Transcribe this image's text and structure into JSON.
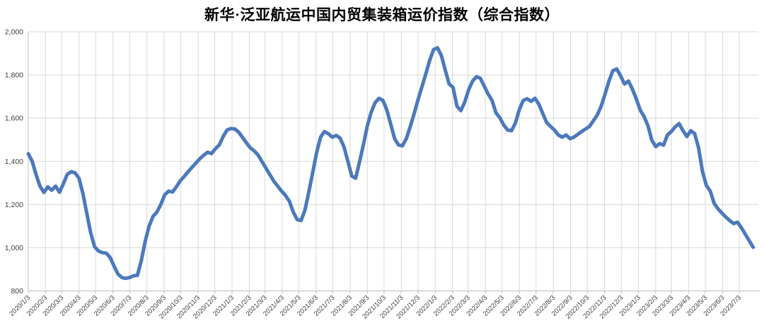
{
  "chart_data": {
    "type": "line",
    "title": "新华·泛亚航运中国内贸集装箱运价指数（综合指数）",
    "legend": "none",
    "grid": "both",
    "ylim": [
      800,
      2000
    ],
    "y_tick_values": [
      800,
      1000,
      1200,
      1400,
      1600,
      1800,
      2000
    ],
    "y_tick_labels": [
      "800",
      "1,000",
      "1,200",
      "1,400",
      "1,600",
      "1,800",
      "2,000"
    ],
    "x_tick_labels": [
      "2020/1/3",
      "2020/2/3",
      "2020/3/3",
      "2020/4/3",
      "2020/5/3",
      "2020/6/3",
      "2020/7/3",
      "2020/8/3",
      "2020/9/3",
      "2020/10/3",
      "2020/11/3",
      "2020/12/3",
      "2021/1/3",
      "2021/2/3",
      "2021/3/3",
      "2021/4/3",
      "2021/5/3",
      "2021/6/3",
      "2021/7/3",
      "2021/8/3",
      "2021/9/3",
      "2021/10/3",
      "2021/11/3",
      "2021/12/3",
      "2022/1/3",
      "2022/2/3",
      "2022/3/3",
      "2022/4/3",
      "2022/5/3",
      "2022/6/3",
      "2022/7/3",
      "2022/8/3",
      "2022/9/3",
      "2022/10/3",
      "2022/11/3",
      "2022/12/3",
      "2023/1/3",
      "2023/2/3",
      "2023/3/3",
      "2023/4/3",
      "2023/5/3",
      "2023/6/3",
      "2023/7/3"
    ],
    "series": [
      {
        "name": "综合指数",
        "x": [
          "2020/1/3",
          "2020/1/10",
          "2020/1/17",
          "2020/1/24",
          "2020/1/31",
          "2020/2/7",
          "2020/2/14",
          "2020/2/21",
          "2020/2/28",
          "2020/3/6",
          "2020/3/13",
          "2020/3/20",
          "2020/3/27",
          "2020/4/3",
          "2020/4/10",
          "2020/4/17",
          "2020/4/24",
          "2020/5/1",
          "2020/5/8",
          "2020/5/15",
          "2020/5/22",
          "2020/5/29",
          "2020/6/5",
          "2020/6/12",
          "2020/6/19",
          "2020/6/26",
          "2020/7/3",
          "2020/7/10",
          "2020/7/17",
          "2020/7/24",
          "2020/7/31",
          "2020/8/7",
          "2020/8/14",
          "2020/8/21",
          "2020/8/28",
          "2020/9/4",
          "2020/9/11",
          "2020/9/18",
          "2020/9/25",
          "2020/10/2",
          "2020/10/9",
          "2020/10/16",
          "2020/10/23",
          "2020/10/30",
          "2020/11/6",
          "2020/11/13",
          "2020/11/20",
          "2020/11/27",
          "2020/12/4",
          "2020/12/11",
          "2020/12/18",
          "2020/12/25",
          "2021/1/1",
          "2021/1/8",
          "2021/1/15",
          "2021/1/22",
          "2021/1/29",
          "2021/2/5",
          "2021/2/12",
          "2021/2/19",
          "2021/2/26",
          "2021/3/5",
          "2021/3/12",
          "2021/3/19",
          "2021/3/26",
          "2021/4/2",
          "2021/4/9",
          "2021/4/16",
          "2021/4/23",
          "2021/4/30",
          "2021/5/7",
          "2021/5/14",
          "2021/5/21",
          "2021/5/28",
          "2021/6/4",
          "2021/6/11",
          "2021/6/18",
          "2021/6/25",
          "2021/7/2",
          "2021/7/9",
          "2021/7/16",
          "2021/7/23",
          "2021/7/30",
          "2021/8/6",
          "2021/8/13",
          "2021/8/20",
          "2021/8/27",
          "2021/9/3",
          "2021/9/10",
          "2021/9/17",
          "2021/9/24",
          "2021/10/1",
          "2021/10/8",
          "2021/10/15",
          "2021/10/22",
          "2021/10/29",
          "2021/11/5",
          "2021/11/12",
          "2021/11/19",
          "2021/11/26",
          "2021/12/3",
          "2021/12/10",
          "2021/12/17",
          "2021/12/24",
          "2021/12/31",
          "2022/1/7",
          "2022/1/14",
          "2022/1/21",
          "2022/1/28",
          "2022/2/4",
          "2022/2/11",
          "2022/2/18",
          "2022/2/25",
          "2022/3/4",
          "2022/3/11",
          "2022/3/18",
          "2022/3/25",
          "2022/4/1",
          "2022/4/8",
          "2022/4/15",
          "2022/4/22",
          "2022/4/29",
          "2022/5/6",
          "2022/5/13",
          "2022/5/20",
          "2022/5/27",
          "2022/6/3",
          "2022/6/10",
          "2022/6/17",
          "2022/6/24",
          "2022/7/1",
          "2022/7/8",
          "2022/7/15",
          "2022/7/22",
          "2022/7/29",
          "2022/8/5",
          "2022/8/12",
          "2022/8/19",
          "2022/8/26",
          "2022/9/2",
          "2022/9/9",
          "2022/9/16",
          "2022/9/23",
          "2022/9/30",
          "2022/10/7",
          "2022/10/14",
          "2022/10/21",
          "2022/10/28",
          "2022/11/4",
          "2022/11/11",
          "2022/11/18",
          "2022/11/25",
          "2022/12/2",
          "2022/12/9",
          "2022/12/16",
          "2022/12/23",
          "2022/12/30",
          "2023/1/6",
          "2023/1/13",
          "2023/1/20",
          "2023/1/27",
          "2023/2/3",
          "2023/2/10",
          "2023/2/17",
          "2023/2/24",
          "2023/3/3",
          "2023/3/10",
          "2023/3/17",
          "2023/3/24",
          "2023/3/31",
          "2023/4/7",
          "2023/4/14",
          "2023/4/21",
          "2023/4/28",
          "2023/5/5",
          "2023/5/12",
          "2023/5/19",
          "2023/5/26",
          "2023/6/2",
          "2023/6/9",
          "2023/6/16",
          "2023/6/23",
          "2023/6/30",
          "2023/7/7",
          "2023/7/14",
          "2023/7/21",
          "2023/7/28"
        ],
        "values": [
          1435,
          1400,
          1338,
          1285,
          1256,
          1282,
          1266,
          1285,
          1257,
          1296,
          1340,
          1352,
          1347,
          1322,
          1252,
          1160,
          1070,
          1005,
          985,
          977,
          975,
          955,
          915,
          878,
          862,
          858,
          862,
          870,
          872,
          940,
          1030,
          1100,
          1145,
          1165,
          1200,
          1245,
          1262,
          1258,
          1282,
          1310,
          1330,
          1352,
          1372,
          1392,
          1412,
          1428,
          1442,
          1436,
          1458,
          1476,
          1515,
          1545,
          1552,
          1550,
          1535,
          1510,
          1485,
          1462,
          1448,
          1428,
          1398,
          1368,
          1338,
          1308,
          1285,
          1262,
          1242,
          1215,
          1165,
          1130,
          1126,
          1175,
          1260,
          1350,
          1442,
          1512,
          1538,
          1528,
          1512,
          1520,
          1508,
          1468,
          1400,
          1332,
          1322,
          1398,
          1478,
          1565,
          1628,
          1672,
          1692,
          1682,
          1638,
          1572,
          1505,
          1476,
          1472,
          1505,
          1560,
          1620,
          1685,
          1745,
          1805,
          1868,
          1918,
          1926,
          1890,
          1822,
          1758,
          1742,
          1655,
          1635,
          1675,
          1732,
          1772,
          1792,
          1785,
          1748,
          1712,
          1682,
          1625,
          1602,
          1568,
          1545,
          1542,
          1578,
          1640,
          1682,
          1690,
          1678,
          1692,
          1665,
          1622,
          1580,
          1562,
          1545,
          1522,
          1512,
          1522,
          1505,
          1512,
          1525,
          1538,
          1550,
          1562,
          1588,
          1615,
          1655,
          1712,
          1772,
          1820,
          1828,
          1795,
          1758,
          1772,
          1735,
          1690,
          1638,
          1608,
          1565,
          1498,
          1468,
          1482,
          1475,
          1522,
          1538,
          1560,
          1575,
          1542,
          1515,
          1542,
          1528,
          1462,
          1352,
          1288,
          1262,
          1205,
          1180,
          1160,
          1142,
          1125,
          1112,
          1118,
          1092,
          1062,
          1032,
          1002
        ]
      }
    ],
    "line_color": "#4C79BB",
    "grid_color": "#D9D9D9",
    "axis_color": "#BFBFBF",
    "tick_label_color": "#404040",
    "title_color": "#000000"
  }
}
